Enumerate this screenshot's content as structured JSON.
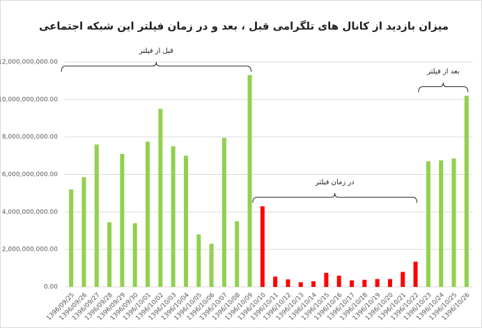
{
  "chart_data": {
    "type": "bar",
    "title": "میزان بازدید از کانال های تلگرامی قبل ، بعد و در زمان فیلتر این شبکه اجتماعی",
    "categories": [
      "1396/09/25",
      "1396/09/26",
      "1396/09/27",
      "1396/09/28",
      "1396/09/29",
      "1396/09/30",
      "1396/10/01",
      "1396/10/02",
      "1396/10/03",
      "1396/10/04",
      "1396/10/05",
      "1396/10/06",
      "1396/10/07",
      "1396/10/08",
      "1396/10/09",
      "1396/10/10",
      "1396/10/11",
      "1396/10/12",
      "1396/10/13",
      "1396/10/14",
      "1396/10/15",
      "1396/10/16",
      "1396/10/17",
      "1396/10/18",
      "1396/10/19",
      "1396/10/20",
      "1396/10/21",
      "1396/10/22",
      "1396/10/23",
      "1396/10/24",
      "1396/10/25",
      "1396/10/26"
    ],
    "values": [
      5200000000,
      5850000000,
      7600000000,
      3450000000,
      7100000000,
      3400000000,
      7750000000,
      9500000000,
      7500000000,
      7000000000,
      2800000000,
      2300000000,
      7950000000,
      3500000000,
      11300000000,
      4300000000,
      550000000,
      400000000,
      250000000,
      300000000,
      750000000,
      600000000,
      350000000,
      380000000,
      420000000,
      420000000,
      800000000,
      1350000000,
      6700000000,
      6750000000,
      6850000000,
      10200000000
    ],
    "colors": [
      "#92d050",
      "#92d050",
      "#92d050",
      "#92d050",
      "#92d050",
      "#92d050",
      "#92d050",
      "#92d050",
      "#92d050",
      "#92d050",
      "#92d050",
      "#92d050",
      "#92d050",
      "#92d050",
      "#92d050",
      "#ff0000",
      "#ff0000",
      "#ff0000",
      "#ff0000",
      "#ff0000",
      "#ff0000",
      "#ff0000",
      "#ff0000",
      "#ff0000",
      "#ff0000",
      "#ff0000",
      "#ff0000",
      "#ff0000",
      "#92d050",
      "#92d050",
      "#92d050",
      "#92d050"
    ],
    "annotations": [
      "قبل از فیلتر",
      "در زمان فیلتر",
      "بعد از فیلتر"
    ],
    "ylim": [
      0,
      12000000000
    ],
    "yticks": [
      {
        "value": 0,
        "label": "0.00"
      },
      {
        "value": 2000000000,
        "label": "2,000,000,000.00"
      },
      {
        "value": 4000000000,
        "label": "4,000,000,000.00"
      },
      {
        "value": 6000000000,
        "label": "6,000,000,000.00"
      },
      {
        "value": 8000000000,
        "label": "8,000,000,000.00"
      },
      {
        "value": 10000000000,
        "label": "10,000,000,000.00"
      },
      {
        "value": 12000000000,
        "label": "12,000,000,000.00"
      }
    ],
    "grid": true
  }
}
